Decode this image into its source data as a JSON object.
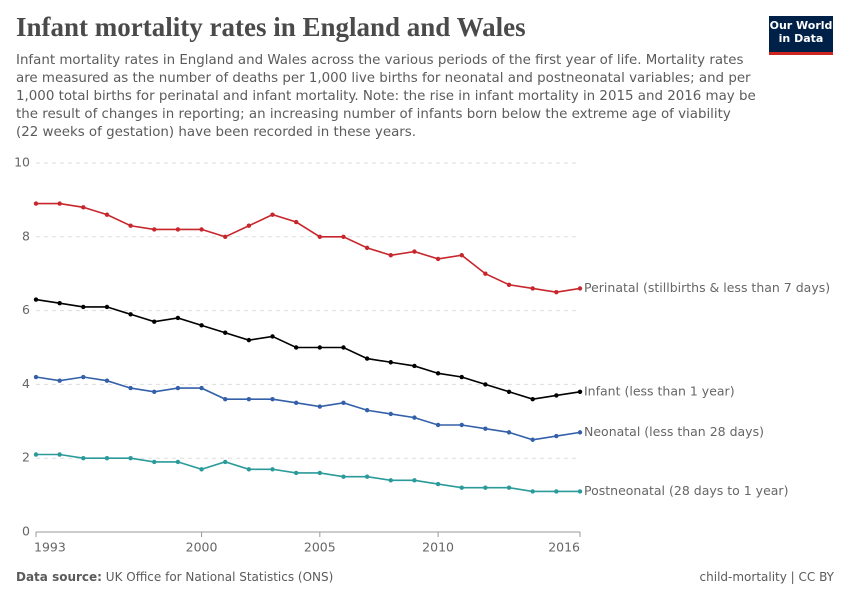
{
  "title": "Infant mortality rates in England and Wales",
  "subtitle": "Infant mortality rates in England and Wales across the various periods of the first year of life. Mortality rates are measured as the number of deaths per 1,000 live births for neonatal and postneonatal variables; and per 1,000 total births for perinatal and infant mortality. Note: the rise in infant mortality in 2015 and 2016 may be the result of changes in reporting; an increasing number of infants born below the extreme age of viability (22 weeks of gestation) have been recorded in these years.",
  "logo": [
    "Our World",
    "in Data"
  ],
  "source_label": "Data source:",
  "source": "UK Office for National Statistics (ONS)",
  "license": "child-mortality | CC BY",
  "chart_data": {
    "type": "line",
    "x": [
      1993,
      1994,
      1995,
      1996,
      1997,
      1998,
      1999,
      2000,
      2001,
      2002,
      2003,
      2004,
      2005,
      2006,
      2007,
      2008,
      2009,
      2010,
      2011,
      2012,
      2013,
      2014,
      2015,
      2016
    ],
    "xlim": [
      1993,
      2016
    ],
    "xticks": [
      1993,
      2000,
      2005,
      2010,
      2016
    ],
    "ylim": [
      0,
      10
    ],
    "yticks": [
      0,
      2,
      4,
      6,
      8,
      10
    ],
    "grid": true,
    "series": [
      {
        "name": "Perinatal (stillbirths & less than 7 days)",
        "color": "#c8262d",
        "values": [
          8.9,
          8.9,
          8.8,
          8.6,
          8.3,
          8.2,
          8.2,
          8.2,
          8.0,
          8.3,
          8.6,
          8.4,
          8.0,
          8.0,
          7.7,
          7.5,
          7.6,
          7.4,
          7.5,
          7.0,
          6.7,
          6.6,
          6.5,
          6.6
        ]
      },
      {
        "name": "Infant (less than 1 year)",
        "color": "#000000",
        "values": [
          6.3,
          6.2,
          6.1,
          6.1,
          5.9,
          5.7,
          5.8,
          5.6,
          5.4,
          5.2,
          5.3,
          5.0,
          5.0,
          5.0,
          4.7,
          4.6,
          4.5,
          4.3,
          4.2,
          4.0,
          3.8,
          3.6,
          3.7,
          3.8
        ]
      },
      {
        "name": "Neonatal (less than 28 days)",
        "color": "#3360a9",
        "values": [
          4.2,
          4.1,
          4.2,
          4.1,
          3.9,
          3.8,
          3.9,
          3.9,
          3.6,
          3.6,
          3.6,
          3.5,
          3.4,
          3.5,
          3.3,
          3.2,
          3.1,
          2.9,
          2.9,
          2.8,
          2.7,
          2.5,
          2.6,
          2.7
        ]
      },
      {
        "name": "Postneonatal (28 days to 1 year)",
        "color": "#2a9a9a",
        "values": [
          2.1,
          2.1,
          2.0,
          2.0,
          2.0,
          1.9,
          1.9,
          1.7,
          1.9,
          1.7,
          1.7,
          1.6,
          1.6,
          1.5,
          1.5,
          1.4,
          1.4,
          1.3,
          1.2,
          1.2,
          1.2,
          1.1,
          1.1,
          1.1
        ]
      }
    ]
  }
}
